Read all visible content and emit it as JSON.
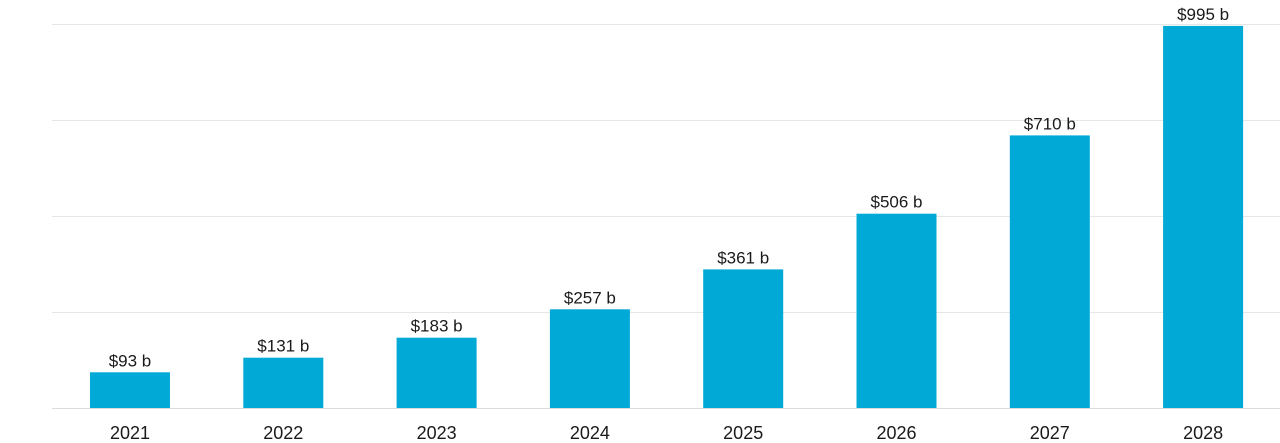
{
  "chart_data": {
    "type": "bar",
    "title": "",
    "xlabel": "",
    "ylabel": "",
    "categories": [
      "2021",
      "2022",
      "2023",
      "2024",
      "2025",
      "2026",
      "2027",
      "2028"
    ],
    "values": [
      93,
      131,
      183,
      257,
      361,
      506,
      710,
      995
    ],
    "data_labels": [
      "$93 b",
      "$131 b",
      "$183 b",
      "$257 b",
      "$361 b",
      "$506 b",
      "$710 b",
      "$995 b"
    ],
    "ylim": [
      0,
      1000
    ],
    "y_gridlines": [
      0,
      250,
      500,
      750,
      1000
    ],
    "y_tick_labels_shown": false,
    "grid": true,
    "legend": "none",
    "bar_color": "#00a9d6"
  }
}
